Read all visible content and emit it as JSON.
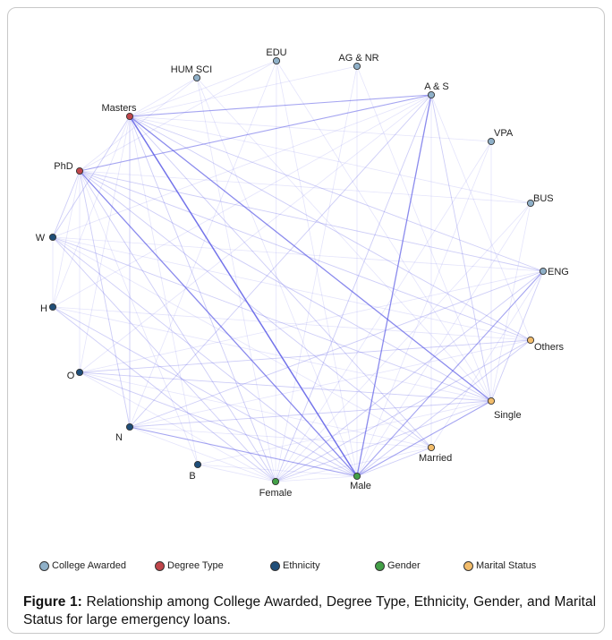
{
  "chart_data": {
    "type": "network",
    "categories": [
      {
        "name": "College Awarded",
        "color": "#8fb0c8"
      },
      {
        "name": "Degree Type",
        "color": "#c0464b"
      },
      {
        "name": "Ethnicity",
        "color": "#1f4e79"
      },
      {
        "name": "Gender",
        "color": "#43a047"
      },
      {
        "name": "Marital Status",
        "color": "#f2bc6b"
      }
    ],
    "nodes": [
      {
        "id": "EDU",
        "label": "EDU",
        "category": "College Awarded"
      },
      {
        "id": "AG_NR",
        "label": "AG & NR",
        "category": "College Awarded"
      },
      {
        "id": "A_S",
        "label": "A & S",
        "category": "College Awarded"
      },
      {
        "id": "VPA",
        "label": "VPA",
        "category": "College Awarded"
      },
      {
        "id": "BUS",
        "label": "BUS",
        "category": "College Awarded"
      },
      {
        "id": "ENG",
        "label": "ENG",
        "category": "College Awarded"
      },
      {
        "id": "HUM_SCI",
        "label": "HUM SCI",
        "category": "College Awarded"
      },
      {
        "id": "Masters",
        "label": "Masters",
        "category": "Degree Type"
      },
      {
        "id": "PhD",
        "label": "PhD",
        "category": "Degree Type"
      },
      {
        "id": "W",
        "label": "W",
        "category": "Ethnicity"
      },
      {
        "id": "H",
        "label": "H",
        "category": "Ethnicity"
      },
      {
        "id": "O",
        "label": "O",
        "category": "Ethnicity"
      },
      {
        "id": "N",
        "label": "N",
        "category": "Ethnicity"
      },
      {
        "id": "B",
        "label": "B",
        "category": "Ethnicity"
      },
      {
        "id": "Female",
        "label": "Female",
        "category": "Gender"
      },
      {
        "id": "Male",
        "label": "Male",
        "category": "Gender"
      },
      {
        "id": "Others",
        "label": "Others",
        "category": "Marital Status"
      },
      {
        "id": "Single",
        "label": "Single",
        "category": "Marital Status"
      },
      {
        "id": "Married",
        "label": "Married",
        "category": "Marital Status"
      }
    ],
    "edges": [
      {
        "s": "Masters",
        "t": "Male",
        "w": 5
      },
      {
        "s": "Masters",
        "t": "Single",
        "w": 4
      },
      {
        "s": "PhD",
        "t": "Male",
        "w": 4
      },
      {
        "s": "A_S",
        "t": "Male",
        "w": 4
      },
      {
        "s": "Masters",
        "t": "A_S",
        "w": 3
      },
      {
        "s": "PhD",
        "t": "A_S",
        "w": 3
      },
      {
        "s": "N",
        "t": "Male",
        "w": 3
      },
      {
        "s": "Male",
        "t": "Single",
        "w": 3
      },
      {
        "s": "Male",
        "t": "ENG",
        "w": 3
      },
      {
        "s": "Masters",
        "t": "Female",
        "w": 2
      },
      {
        "s": "Masters",
        "t": "N",
        "w": 2
      },
      {
        "s": "Masters",
        "t": "ENG",
        "w": 2
      },
      {
        "s": "Masters",
        "t": "Others",
        "w": 2
      },
      {
        "s": "Masters",
        "t": "Married",
        "w": 2
      },
      {
        "s": "Masters",
        "t": "W",
        "w": 2
      },
      {
        "s": "PhD",
        "t": "N",
        "w": 2
      },
      {
        "s": "PhD",
        "t": "Female",
        "w": 2
      },
      {
        "s": "PhD",
        "t": "Single",
        "w": 2
      },
      {
        "s": "PhD",
        "t": "ENG",
        "w": 2
      },
      {
        "s": "PhD",
        "t": "Married",
        "w": 2
      },
      {
        "s": "A_S",
        "t": "Single",
        "w": 2
      },
      {
        "s": "A_S",
        "t": "Female",
        "w": 2
      },
      {
        "s": "A_S",
        "t": "N",
        "w": 2
      },
      {
        "s": "ENG",
        "t": "Single",
        "w": 2
      },
      {
        "s": "ENG",
        "t": "N",
        "w": 2
      },
      {
        "s": "N",
        "t": "Single",
        "w": 2
      },
      {
        "s": "O",
        "t": "Others",
        "w": 2
      },
      {
        "s": "O",
        "t": "Single",
        "w": 2
      },
      {
        "s": "W",
        "t": "Male",
        "w": 2
      },
      {
        "s": "W",
        "t": "Single",
        "w": 2
      },
      {
        "s": "W",
        "t": "Female",
        "w": 2
      },
      {
        "s": "H",
        "t": "Male",
        "w": 2
      },
      {
        "s": "H",
        "t": "Female",
        "w": 2
      },
      {
        "s": "O",
        "t": "Male",
        "w": 2
      },
      {
        "s": "Female",
        "t": "ENG",
        "w": 2
      },
      {
        "s": "Female",
        "t": "Single",
        "w": 2
      },
      {
        "s": "Female",
        "t": "Others",
        "w": 2
      },
      {
        "s": "Male",
        "t": "Married",
        "w": 2
      },
      {
        "s": "Male",
        "t": "Others",
        "w": 2
      },
      {
        "s": "PhD",
        "t": "W",
        "w": 2
      },
      {
        "s": "PhD",
        "t": "Others",
        "w": 2
      },
      {
        "s": "Masters",
        "t": "H",
        "w": 1
      },
      {
        "s": "Masters",
        "t": "O",
        "w": 1
      },
      {
        "s": "Masters",
        "t": "B",
        "w": 1
      },
      {
        "s": "Masters",
        "t": "EDU",
        "w": 1
      },
      {
        "s": "Masters",
        "t": "HUM_SCI",
        "w": 1
      },
      {
        "s": "Masters",
        "t": "AG_NR",
        "w": 1
      },
      {
        "s": "Masters",
        "t": "BUS",
        "w": 1
      },
      {
        "s": "Masters",
        "t": "VPA",
        "w": 1
      },
      {
        "s": "PhD",
        "t": "H",
        "w": 1
      },
      {
        "s": "PhD",
        "t": "O",
        "w": 1
      },
      {
        "s": "PhD",
        "t": "B",
        "w": 1
      },
      {
        "s": "PhD",
        "t": "EDU",
        "w": 1
      },
      {
        "s": "PhD",
        "t": "HUM_SCI",
        "w": 1
      },
      {
        "s": "PhD",
        "t": "BUS",
        "w": 1
      },
      {
        "s": "A_S",
        "t": "W",
        "w": 1
      },
      {
        "s": "A_S",
        "t": "O",
        "w": 1
      },
      {
        "s": "A_S",
        "t": "H",
        "w": 1
      },
      {
        "s": "A_S",
        "t": "Married",
        "w": 1
      },
      {
        "s": "A_S",
        "t": "Others",
        "w": 1
      },
      {
        "s": "ENG",
        "t": "W",
        "w": 1
      },
      {
        "s": "ENG",
        "t": "O",
        "w": 1
      },
      {
        "s": "ENG",
        "t": "Married",
        "w": 1
      },
      {
        "s": "EDU",
        "t": "Female",
        "w": 1
      },
      {
        "s": "EDU",
        "t": "Male",
        "w": 1
      },
      {
        "s": "EDU",
        "t": "Single",
        "w": 1
      },
      {
        "s": "EDU",
        "t": "N",
        "w": 1
      },
      {
        "s": "AG_NR",
        "t": "Male",
        "w": 1
      },
      {
        "s": "AG_NR",
        "t": "Single",
        "w": 1
      },
      {
        "s": "AG_NR",
        "t": "Female",
        "w": 1
      },
      {
        "s": "HUM_SCI",
        "t": "Female",
        "w": 1
      },
      {
        "s": "HUM_SCI",
        "t": "Male",
        "w": 1
      },
      {
        "s": "HUM_SCI",
        "t": "Single",
        "w": 1
      },
      {
        "s": "VPA",
        "t": "Male",
        "w": 1
      },
      {
        "s": "VPA",
        "t": "Single",
        "w": 1
      },
      {
        "s": "VPA",
        "t": "Female",
        "w": 1
      },
      {
        "s": "BUS",
        "t": "Male",
        "w": 1
      },
      {
        "s": "BUS",
        "t": "Single",
        "w": 1
      },
      {
        "s": "BUS",
        "t": "Female",
        "w": 1
      },
      {
        "s": "N",
        "t": "Others",
        "w": 1
      },
      {
        "s": "N",
        "t": "Female",
        "w": 1
      },
      {
        "s": "N",
        "t": "Married",
        "w": 1
      },
      {
        "s": "W",
        "t": "Others",
        "w": 1
      },
      {
        "s": "W",
        "t": "Married",
        "w": 1
      },
      {
        "s": "W",
        "t": "H",
        "w": 1
      },
      {
        "s": "H",
        "t": "Single",
        "w": 1
      },
      {
        "s": "H",
        "t": "Others",
        "w": 1
      },
      {
        "s": "O",
        "t": "Female",
        "w": 1
      },
      {
        "s": "O",
        "t": "Married",
        "w": 1
      },
      {
        "s": "B",
        "t": "Male",
        "w": 1
      },
      {
        "s": "B",
        "t": "Single",
        "w": 1
      },
      {
        "s": "B",
        "t": "Female",
        "w": 1
      },
      {
        "s": "Female",
        "t": "Married",
        "w": 1
      },
      {
        "s": "Female",
        "t": "Male",
        "w": 1
      }
    ],
    "legend_placement": "bottom"
  },
  "legend": {
    "items": [
      {
        "label": "College Awarded",
        "color": "#8fb0c8"
      },
      {
        "label": "Degree Type",
        "color": "#c0464b"
      },
      {
        "label": "Ethnicity",
        "color": "#1f4e79"
      },
      {
        "label": "Gender",
        "color": "#43a047"
      },
      {
        "label": "Marital Status",
        "color": "#f2bc6b"
      }
    ]
  },
  "caption": {
    "prefix": "Figure 1:",
    "text": " Relationship among College Awarded, Degree Type, Ethnicity, Gender, and Marital Status for large emergency loans."
  },
  "colors": {
    "edge": "#5a5ae6",
    "node_border": "#333333",
    "frame_border": "#c8c8c8"
  }
}
